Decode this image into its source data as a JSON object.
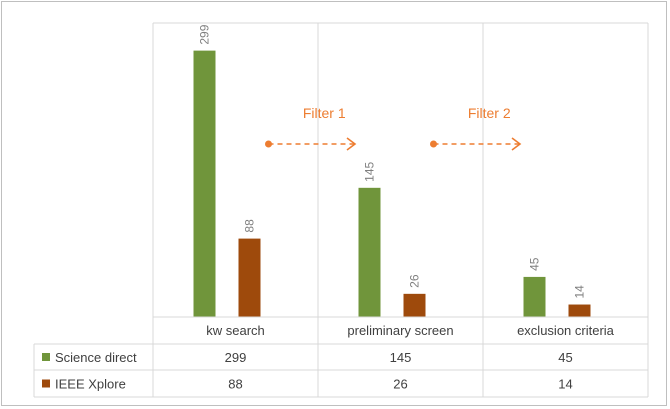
{
  "chart_data": {
    "type": "bar",
    "categories": [
      "kw search",
      "preliminary screen",
      "exclusion criteria"
    ],
    "series": [
      {
        "name": "Science direct",
        "color": "#70953b",
        "values": [
          299,
          145,
          45
        ]
      },
      {
        "name": "IEEE Xplore",
        "color": "#9e4a0c",
        "values": [
          88,
          26,
          14
        ]
      }
    ],
    "ylim": [
      0,
      330
    ],
    "grid": "vertical category separators",
    "data_labels": "rotated above bars",
    "legend": "data table below chart",
    "annotations": [
      {
        "label": "Filter 1",
        "color": "#ed7d31",
        "from_category": 0,
        "to_category": 1,
        "style": "dashed arrow"
      },
      {
        "label": "Filter 2",
        "color": "#ed7d31",
        "from_category": 1,
        "to_category": 2,
        "style": "dashed arrow"
      }
    ],
    "table": {
      "rows": [
        {
          "series": "Science direct",
          "values": [
            "299",
            "145",
            "45"
          ]
        },
        {
          "series": "IEEE Xplore",
          "values": [
            "88",
            "26",
            "14"
          ]
        }
      ]
    }
  }
}
